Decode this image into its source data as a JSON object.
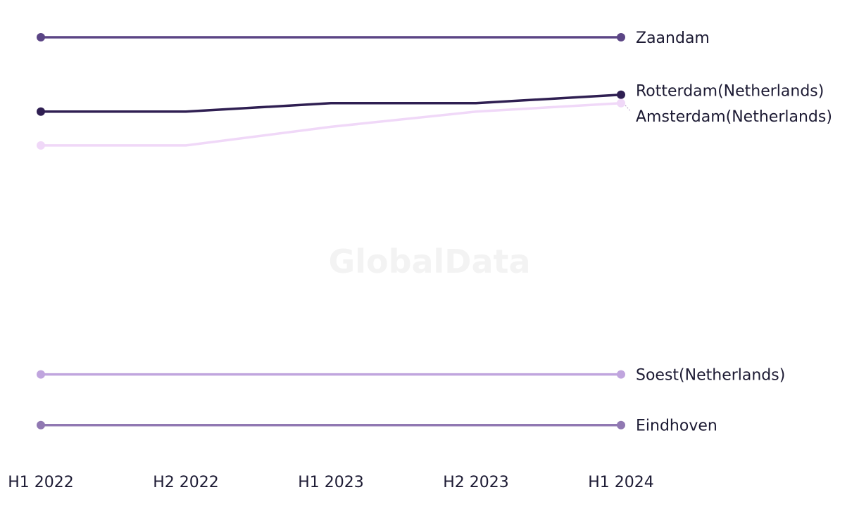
{
  "watermark": "GlobalData",
  "chart_data": {
    "type": "line",
    "title": "",
    "xlabel": "",
    "ylabel": "",
    "categories": [
      "H1 2022",
      "H2 2022",
      "H1 2023",
      "H2 2023",
      "H1 2024"
    ],
    "ylim": [
      0,
      100
    ],
    "grid": false,
    "legend": "end-of-line labels",
    "series": [
      {
        "name": "Zaandam",
        "values": [
          100,
          100,
          100,
          100,
          100
        ],
        "color": "#5b4585"
      },
      {
        "name": "Rotterdam(Netherlands)",
        "values": [
          82.4,
          82.4,
          84.4,
          84.4,
          86.4
        ],
        "color": "#2f1f52"
      },
      {
        "name": "Amsterdam(Netherlands)",
        "values": [
          74.4,
          74.4,
          78.8,
          82.4,
          84.4
        ],
        "color": "#f0d8f8"
      },
      {
        "name": "Soest(Netherlands)",
        "values": [
          20.2,
          20.2,
          20.2,
          20.2,
          20.2
        ],
        "color": "#c0a5de"
      },
      {
        "name": "Eindhoven",
        "values": [
          8.2,
          8.2,
          8.2,
          8.2,
          8.2
        ],
        "color": "#9078b2"
      }
    ]
  }
}
